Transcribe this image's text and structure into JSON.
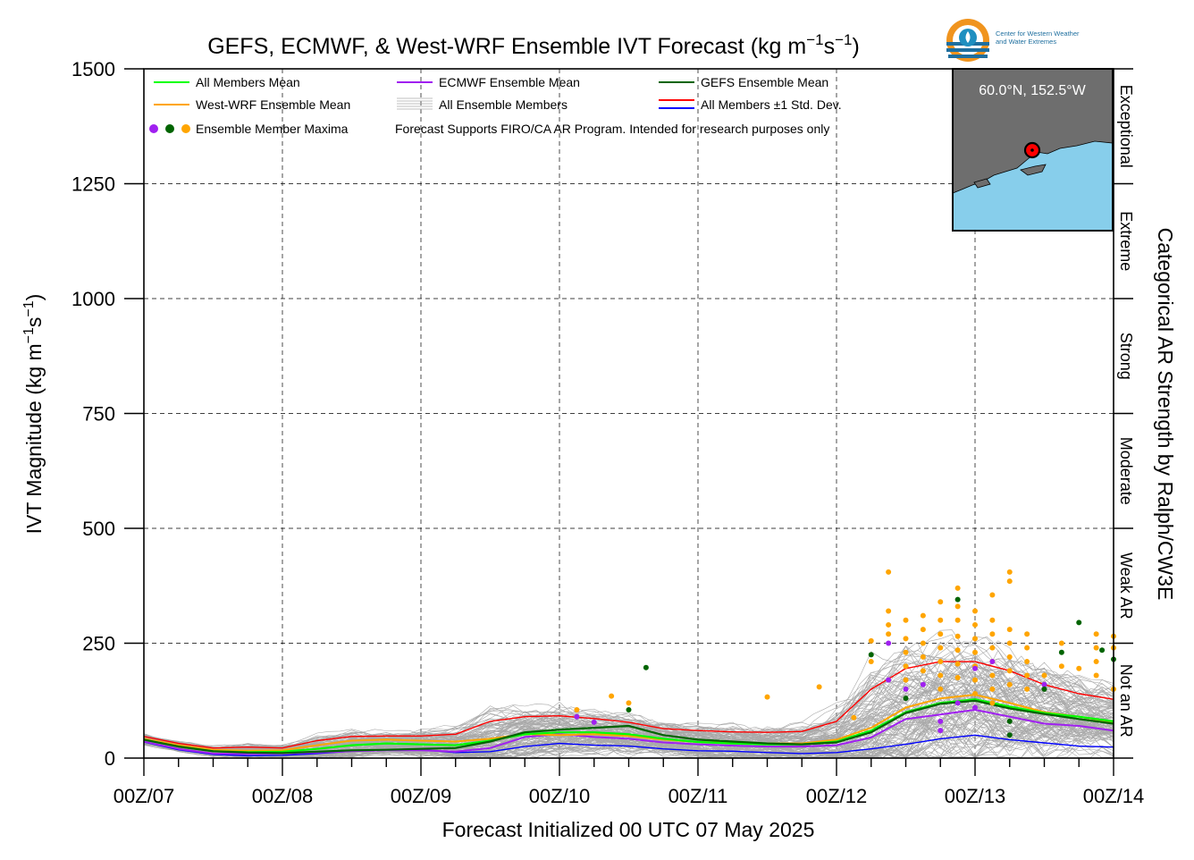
{
  "logo": {
    "line1": "Center for Western Weather",
    "line2": "and Water Extremes"
  },
  "inset": {
    "label": "60.0°N, 152.5°W",
    "land_color": "#6e6e6e",
    "water_color": "#87ceeb",
    "marker_color": "#ff0000"
  },
  "legend": {
    "all_mean": "All Members Mean",
    "ecmwf_mean": "ECMWF Ensemble Mean",
    "gefs_mean": "GEFS Ensemble Mean",
    "wrf_mean": "West-WRF Ensemble Mean",
    "all_members": "All Ensemble Members",
    "std_dev": "All Members ±1 Std. Dev.",
    "maxima": "Ensemble Member Maxima",
    "note": "Forecast Supports FIRO/CA AR Program. Intended for research purposes only",
    "placement": "top-left"
  },
  "chart_data": {
    "type": "line",
    "title_main": "GEFS, ECMWF, & West-WRF Ensemble IVT Forecast (kg m",
    "title_exp1": "−1",
    "title_mid": "s",
    "title_exp2": "−1",
    "title_end": ")",
    "xlabel": "Forecast Initialized 00 UTC 07 May 2025",
    "ylabel_main": "IVT Magnitude (kg m",
    "ylabel_exp1": "−1",
    "ylabel_mid": "s",
    "ylabel_exp2": "−1",
    "ylabel_end": ")",
    "right_label": "Categorical AR Strength by Ralph/CW3E",
    "xlim": [
      0,
      168
    ],
    "ylim": [
      0,
      1500
    ],
    "grid": true,
    "x_ticks": [
      {
        "x": 0,
        "label": "00Z/07"
      },
      {
        "x": 24,
        "label": "00Z/08"
      },
      {
        "x": 48,
        "label": "00Z/09"
      },
      {
        "x": 72,
        "label": "00Z/10"
      },
      {
        "x": 96,
        "label": "00Z/11"
      },
      {
        "x": 120,
        "label": "00Z/12"
      },
      {
        "x": 144,
        "label": "00Z/13"
      },
      {
        "x": 168,
        "label": "00Z/14"
      }
    ],
    "y_ticks": [
      {
        "y": 0,
        "label": "0"
      },
      {
        "y": 250,
        "label": "250"
      },
      {
        "y": 500,
        "label": "500"
      },
      {
        "y": 750,
        "label": "750"
      },
      {
        "y": 1000,
        "label": "1000"
      },
      {
        "y": 1250,
        "label": "1250"
      },
      {
        "y": 1500,
        "label": "1500"
      }
    ],
    "categories": [
      {
        "label": "Not an AR",
        "from": 0,
        "to": 250
      },
      {
        "label": "Weak AR",
        "from": 250,
        "to": 500
      },
      {
        "label": "Moderate",
        "from": 500,
        "to": 750
      },
      {
        "label": "Strong",
        "from": 750,
        "to": 1000
      },
      {
        "label": "Extreme",
        "from": 1000,
        "to": 1250
      },
      {
        "label": "Exceptional",
        "from": 1250,
        "to": 1500
      }
    ],
    "x": [
      0,
      6,
      12,
      18,
      24,
      30,
      36,
      42,
      48,
      54,
      60,
      66,
      72,
      78,
      84,
      90,
      96,
      102,
      108,
      114,
      120,
      126,
      132,
      138,
      144,
      150,
      156,
      162,
      168
    ],
    "series": [
      {
        "name": "All Members Mean",
        "color": "#00ff00",
        "width": 2.2,
        "values": [
          40,
          25,
          15,
          13,
          14,
          20,
          28,
          32,
          30,
          28,
          38,
          52,
          56,
          56,
          52,
          42,
          35,
          32,
          30,
          30,
          36,
          60,
          100,
          120,
          128,
          112,
          98,
          90,
          80
        ]
      },
      {
        "name": "West-WRF Ensemble Mean",
        "color": "#ffa500",
        "width": 2.0,
        "values": [
          42,
          28,
          18,
          16,
          17,
          28,
          38,
          40,
          38,
          36,
          42,
          52,
          50,
          52,
          48,
          40,
          35,
          33,
          32,
          32,
          40,
          66,
          110,
          130,
          138,
          120,
          100,
          90,
          78
        ]
      },
      {
        "name": "ECMWF Ensemble Mean",
        "color": "#a020f0",
        "width": 2.0,
        "values": [
          36,
          20,
          10,
          9,
          10,
          12,
          15,
          17,
          17,
          14,
          22,
          46,
          52,
          46,
          42,
          34,
          30,
          27,
          25,
          25,
          28,
          45,
          85,
          95,
          105,
          90,
          75,
          70,
          60
        ]
      },
      {
        "name": "GEFS Ensemble Mean",
        "color": "#006400",
        "width": 2.2,
        "values": [
          40,
          25,
          15,
          12,
          11,
          14,
          17,
          18,
          20,
          22,
          36,
          56,
          62,
          66,
          70,
          50,
          40,
          36,
          32,
          30,
          34,
          56,
          98,
          118,
          125,
          108,
          96,
          85,
          75
        ]
      },
      {
        "name": "All Members +1 Std. Dev.",
        "color": "#ff0000",
        "width": 1.4,
        "values": [
          47,
          32,
          22,
          24,
          22,
          38,
          47,
          48,
          48,
          52,
          80,
          90,
          92,
          86,
          78,
          64,
          60,
          57,
          56,
          58,
          80,
          150,
          195,
          210,
          210,
          190,
          160,
          140,
          128
        ]
      },
      {
        "name": "All Members -1 Std. Dev.",
        "color": "#0000ff",
        "width": 1.4,
        "values": [
          35,
          18,
          8,
          5,
          6,
          10,
          15,
          18,
          18,
          12,
          14,
          25,
          32,
          28,
          26,
          20,
          16,
          15,
          12,
          10,
          12,
          20,
          30,
          42,
          50,
          40,
          33,
          26,
          24
        ]
      }
    ],
    "maxima": [
      {
        "x": 75,
        "y": 105,
        "color": "#ffa500"
      },
      {
        "x": 75,
        "y": 90,
        "color": "#a020f0"
      },
      {
        "x": 78,
        "y": 78,
        "color": "#a020f0"
      },
      {
        "x": 81,
        "y": 135,
        "color": "#ffa500"
      },
      {
        "x": 84,
        "y": 120,
        "color": "#ffa500"
      },
      {
        "x": 84,
        "y": 105,
        "color": "#006400"
      },
      {
        "x": 87,
        "y": 197,
        "color": "#006400"
      },
      {
        "x": 108,
        "y": 133,
        "color": "#ffa500"
      },
      {
        "x": 117,
        "y": 155,
        "color": "#ffa500"
      },
      {
        "x": 123,
        "y": 88,
        "color": "#ffa500"
      },
      {
        "x": 126,
        "y": 225,
        "color": "#006400"
      },
      {
        "x": 126,
        "y": 255,
        "color": "#ffa500"
      },
      {
        "x": 126,
        "y": 210,
        "color": "#ffa500"
      },
      {
        "x": 129,
        "y": 405,
        "color": "#ffa500"
      },
      {
        "x": 129,
        "y": 320,
        "color": "#ffa500"
      },
      {
        "x": 129,
        "y": 290,
        "color": "#ffa500"
      },
      {
        "x": 129,
        "y": 270,
        "color": "#ffa500"
      },
      {
        "x": 129,
        "y": 250,
        "color": "#a020f0"
      },
      {
        "x": 129,
        "y": 170,
        "color": "#a020f0"
      },
      {
        "x": 132,
        "y": 300,
        "color": "#ffa500"
      },
      {
        "x": 132,
        "y": 260,
        "color": "#ffa500"
      },
      {
        "x": 132,
        "y": 230,
        "color": "#ffa500"
      },
      {
        "x": 132,
        "y": 200,
        "color": "#ffa500"
      },
      {
        "x": 132,
        "y": 170,
        "color": "#ffa500"
      },
      {
        "x": 132,
        "y": 150,
        "color": "#a020f0"
      },
      {
        "x": 132,
        "y": 130,
        "color": "#006400"
      },
      {
        "x": 135,
        "y": 310,
        "color": "#ffa500"
      },
      {
        "x": 135,
        "y": 280,
        "color": "#ffa500"
      },
      {
        "x": 135,
        "y": 250,
        "color": "#ffa500"
      },
      {
        "x": 135,
        "y": 220,
        "color": "#ffa500"
      },
      {
        "x": 135,
        "y": 190,
        "color": "#ffa500"
      },
      {
        "x": 135,
        "y": 160,
        "color": "#a020f0"
      },
      {
        "x": 138,
        "y": 340,
        "color": "#ffa500"
      },
      {
        "x": 138,
        "y": 300,
        "color": "#ffa500"
      },
      {
        "x": 138,
        "y": 270,
        "color": "#ffa500"
      },
      {
        "x": 138,
        "y": 240,
        "color": "#ffa500"
      },
      {
        "x": 138,
        "y": 210,
        "color": "#ffa500"
      },
      {
        "x": 138,
        "y": 180,
        "color": "#ffa500"
      },
      {
        "x": 138,
        "y": 150,
        "color": "#ffa500"
      },
      {
        "x": 138,
        "y": 80,
        "color": "#a020f0"
      },
      {
        "x": 138,
        "y": 60,
        "color": "#a020f0"
      },
      {
        "x": 141,
        "y": 370,
        "color": "#ffa500"
      },
      {
        "x": 141,
        "y": 330,
        "color": "#ffa500"
      },
      {
        "x": 141,
        "y": 300,
        "color": "#ffa500"
      },
      {
        "x": 141,
        "y": 265,
        "color": "#ffa500"
      },
      {
        "x": 141,
        "y": 235,
        "color": "#ffa500"
      },
      {
        "x": 141,
        "y": 205,
        "color": "#ffa500"
      },
      {
        "x": 141,
        "y": 175,
        "color": "#ffa500"
      },
      {
        "x": 141,
        "y": 345,
        "color": "#006400"
      },
      {
        "x": 141,
        "y": 120,
        "color": "#a020f0"
      },
      {
        "x": 144,
        "y": 320,
        "color": "#ffa500"
      },
      {
        "x": 144,
        "y": 290,
        "color": "#ffa500"
      },
      {
        "x": 144,
        "y": 260,
        "color": "#ffa500"
      },
      {
        "x": 144,
        "y": 230,
        "color": "#ffa500"
      },
      {
        "x": 144,
        "y": 200,
        "color": "#ffa500"
      },
      {
        "x": 144,
        "y": 170,
        "color": "#ffa500"
      },
      {
        "x": 144,
        "y": 140,
        "color": "#ffa500"
      },
      {
        "x": 144,
        "y": 195,
        "color": "#a020f0"
      },
      {
        "x": 144,
        "y": 110,
        "color": "#a020f0"
      },
      {
        "x": 147,
        "y": 300,
        "color": "#ffa500"
      },
      {
        "x": 147,
        "y": 270,
        "color": "#ffa500"
      },
      {
        "x": 147,
        "y": 240,
        "color": "#ffa500"
      },
      {
        "x": 147,
        "y": 210,
        "color": "#ffa500"
      },
      {
        "x": 147,
        "y": 180,
        "color": "#ffa500"
      },
      {
        "x": 147,
        "y": 150,
        "color": "#ffa500"
      },
      {
        "x": 147,
        "y": 120,
        "color": "#ffa500"
      },
      {
        "x": 147,
        "y": 210,
        "color": "#a020f0"
      },
      {
        "x": 147,
        "y": 355,
        "color": "#ffa500"
      },
      {
        "x": 150,
        "y": 405,
        "color": "#ffa500"
      },
      {
        "x": 150,
        "y": 385,
        "color": "#ffa500"
      },
      {
        "x": 150,
        "y": 280,
        "color": "#ffa500"
      },
      {
        "x": 150,
        "y": 250,
        "color": "#ffa500"
      },
      {
        "x": 150,
        "y": 220,
        "color": "#ffa500"
      },
      {
        "x": 150,
        "y": 190,
        "color": "#ffa500"
      },
      {
        "x": 150,
        "y": 160,
        "color": "#ffa500"
      },
      {
        "x": 150,
        "y": 80,
        "color": "#006400"
      },
      {
        "x": 150,
        "y": 50,
        "color": "#006400"
      },
      {
        "x": 153,
        "y": 270,
        "color": "#ffa500"
      },
      {
        "x": 153,
        "y": 240,
        "color": "#ffa500"
      },
      {
        "x": 153,
        "y": 210,
        "color": "#ffa500"
      },
      {
        "x": 153,
        "y": 180,
        "color": "#ffa500"
      },
      {
        "x": 153,
        "y": 150,
        "color": "#ffa500"
      },
      {
        "x": 156,
        "y": 180,
        "color": "#ffa500"
      },
      {
        "x": 156,
        "y": 160,
        "color": "#a020f0"
      },
      {
        "x": 156,
        "y": 150,
        "color": "#006400"
      },
      {
        "x": 159,
        "y": 250,
        "color": "#ffa500"
      },
      {
        "x": 159,
        "y": 230,
        "color": "#006400"
      },
      {
        "x": 159,
        "y": 200,
        "color": "#ffa500"
      },
      {
        "x": 162,
        "y": 295,
        "color": "#006400"
      },
      {
        "x": 162,
        "y": 195,
        "color": "#ffa500"
      },
      {
        "x": 165,
        "y": 270,
        "color": "#ffa500"
      },
      {
        "x": 165,
        "y": 240,
        "color": "#ffa500"
      },
      {
        "x": 165,
        "y": 210,
        "color": "#ffa500"
      },
      {
        "x": 165,
        "y": 180,
        "color": "#ffa500"
      },
      {
        "x": 166,
        "y": 235,
        "color": "#006400"
      },
      {
        "x": 168,
        "y": 265,
        "color": "#ffa500"
      },
      {
        "x": 168,
        "y": 240,
        "color": "#ffa500"
      },
      {
        "x": 168,
        "y": 215,
        "color": "#006400"
      },
      {
        "x": 168,
        "y": 150,
        "color": "#ffa500"
      }
    ]
  }
}
